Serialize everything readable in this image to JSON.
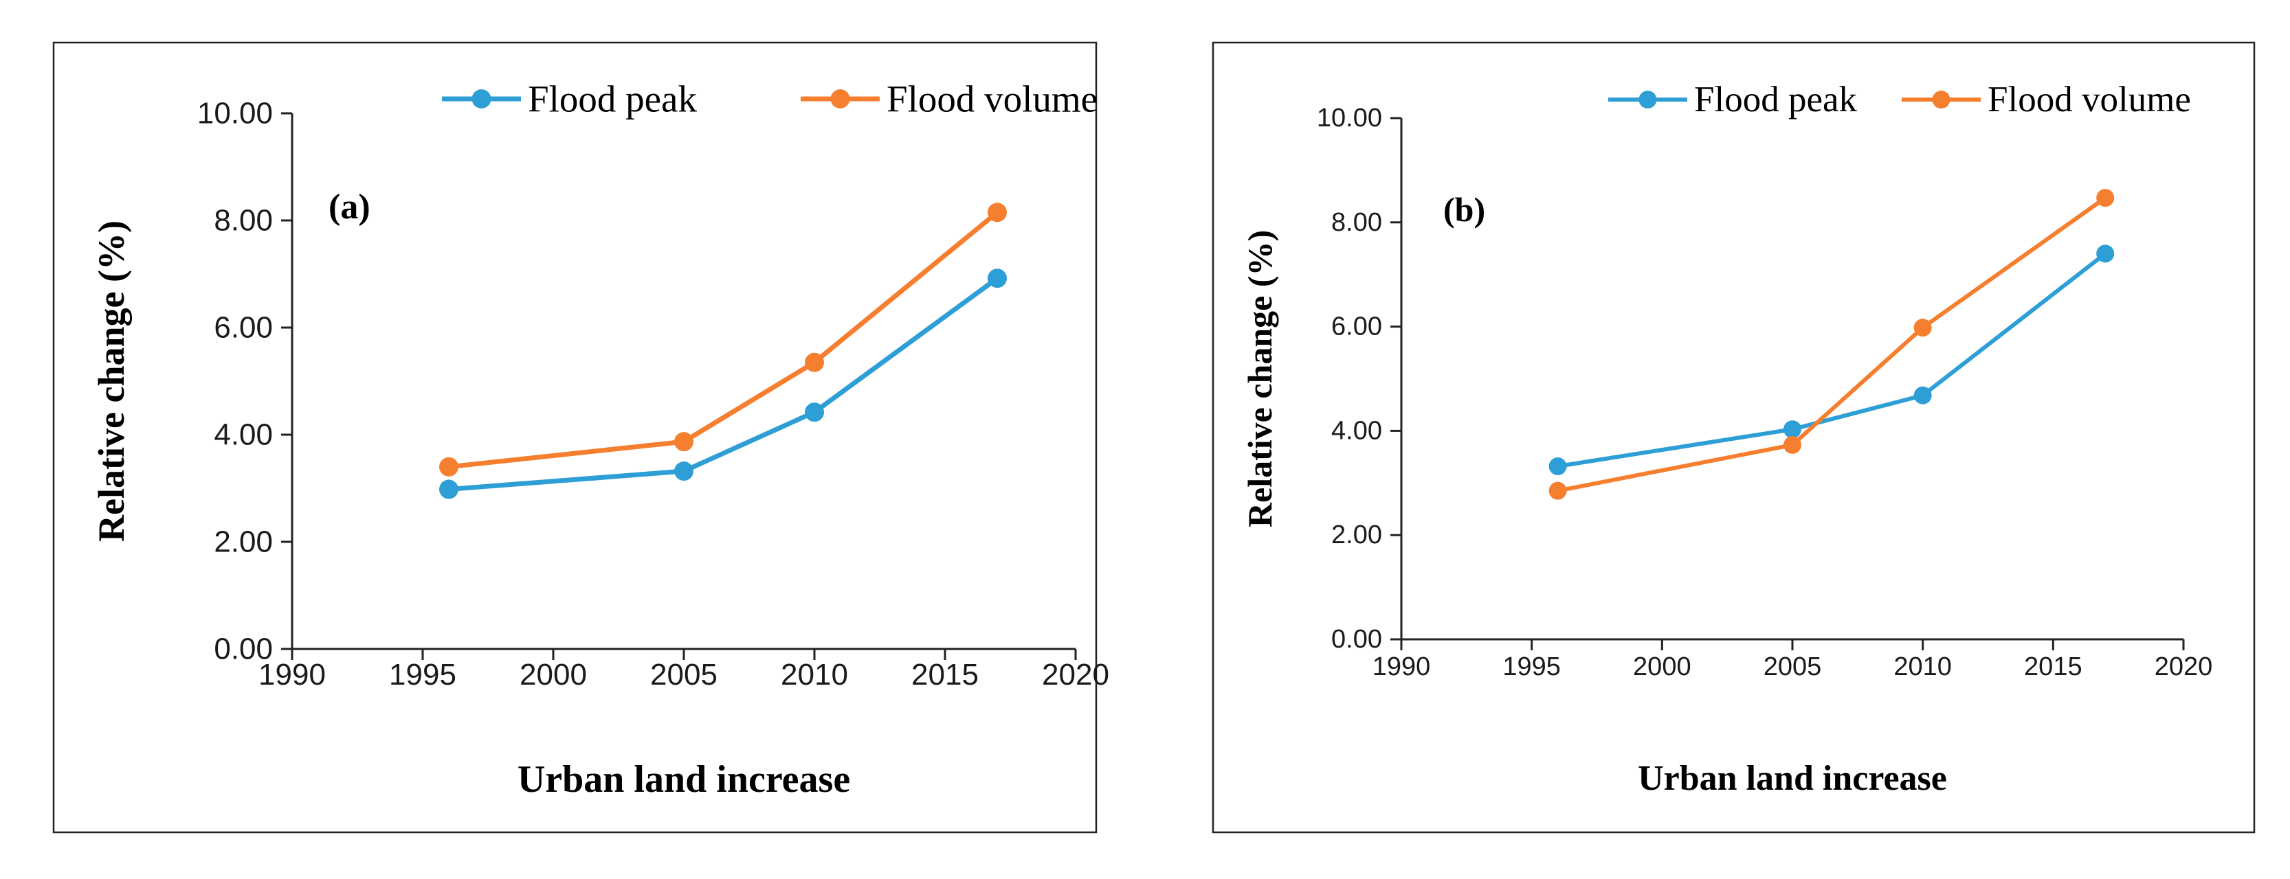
{
  "chart_data": [
    {
      "type": "line",
      "panel_label": "(a)",
      "xlabel": "Urban land increase",
      "ylabel": "Relative change (%)",
      "xlim": [
        1990,
        2020
      ],
      "ylim": [
        0,
        10
      ],
      "x_ticks": [
        1990,
        1995,
        2000,
        2005,
        2010,
        2015,
        2020
      ],
      "y_ticks": [
        "0.00",
        "2.00",
        "4.00",
        "6.00",
        "8.00",
        "10.00"
      ],
      "legend_position": "top-right",
      "grid": false,
      "series": [
        {
          "name": "Flood peak",
          "color": "#2E9FD6",
          "x": [
            1996,
            2005,
            2010,
            2017
          ],
          "values": [
            2.98,
            3.32,
            4.42,
            6.92
          ]
        },
        {
          "name": "Flood volume",
          "color": "#F57F2F",
          "x": [
            1996,
            2005,
            2010,
            2017
          ],
          "values": [
            3.4,
            3.87,
            5.35,
            8.15
          ]
        }
      ]
    },
    {
      "type": "line",
      "panel_label": "(b)",
      "xlabel": "Urban land increase",
      "ylabel": "Relative change (%)",
      "xlim": [
        1990,
        2020
      ],
      "ylim": [
        0,
        10
      ],
      "x_ticks": [
        1990,
        1995,
        2000,
        2005,
        2010,
        2015,
        2020
      ],
      "y_ticks": [
        "0.00",
        "2.00",
        "4.00",
        "6.00",
        "8.00",
        "10.00"
      ],
      "legend_position": "top-right",
      "grid": false,
      "series": [
        {
          "name": "Flood peak",
          "color": "#2E9FD6",
          "x": [
            1996,
            2005,
            2010,
            2017
          ],
          "values": [
            3.32,
            4.03,
            4.68,
            7.4
          ]
        },
        {
          "name": "Flood  volume",
          "color": "#F57F2F",
          "x": [
            1996,
            2005,
            2010,
            2017
          ],
          "values": [
            2.85,
            3.73,
            5.98,
            8.47
          ]
        }
      ]
    }
  ]
}
